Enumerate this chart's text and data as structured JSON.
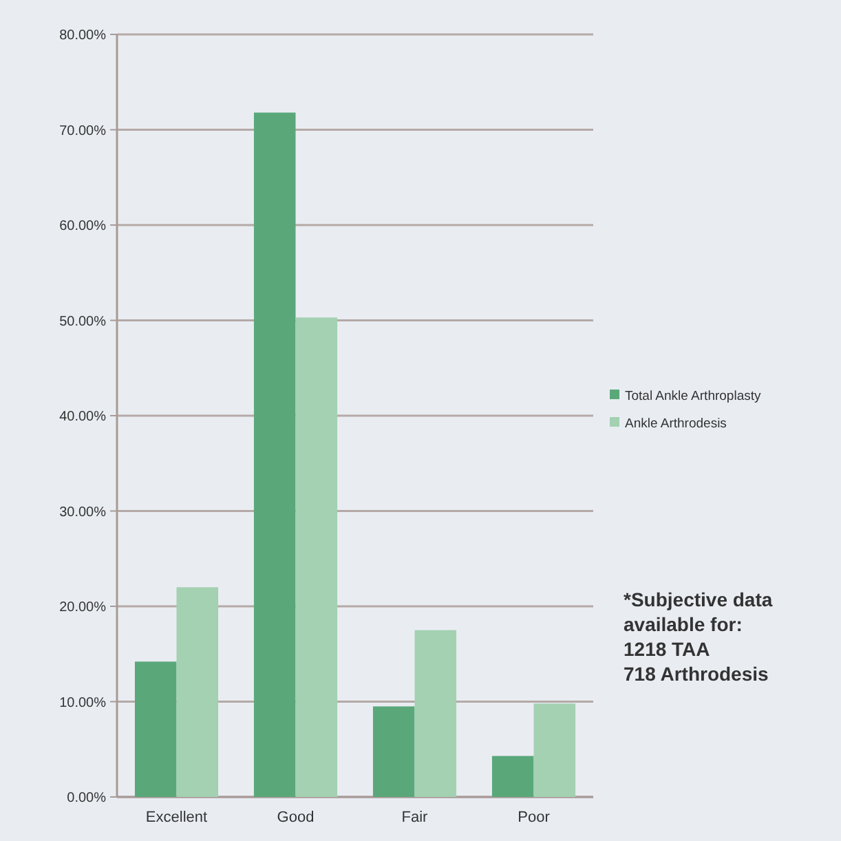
{
  "chart_data": {
    "type": "bar",
    "categories": [
      "Excellent",
      "Good",
      "Fair",
      "Poor"
    ],
    "series": [
      {
        "name": "Total Ankle Arthroplasty",
        "color": "#5aa87a",
        "values": [
          14.2,
          71.8,
          9.5,
          4.3
        ]
      },
      {
        "name": "Ankle Arthrodesis",
        "color": "#a3d1b2",
        "values": [
          22,
          50.3,
          17.5,
          9.8
        ]
      }
    ],
    "ylim": [
      0,
      80
    ],
    "yticks": [
      {
        "value": 0,
        "label": "0.00%"
      },
      {
        "value": 10,
        "label": "10.00%"
      },
      {
        "value": 20,
        "label": "20.00%"
      },
      {
        "value": 30,
        "label": "30.00%"
      },
      {
        "value": 40,
        "label": "40.00%"
      },
      {
        "value": 50,
        "label": "50.00%"
      },
      {
        "value": 60,
        "label": "60.00%"
      },
      {
        "value": 70,
        "label": "70.00%"
      },
      {
        "value": 80,
        "label": "80.00%"
      }
    ],
    "grid": "y",
    "legend": "right",
    "annotations": [
      "*Subjective data\navailable for:\n1218 TAA\n718 Arthrodesis"
    ]
  }
}
